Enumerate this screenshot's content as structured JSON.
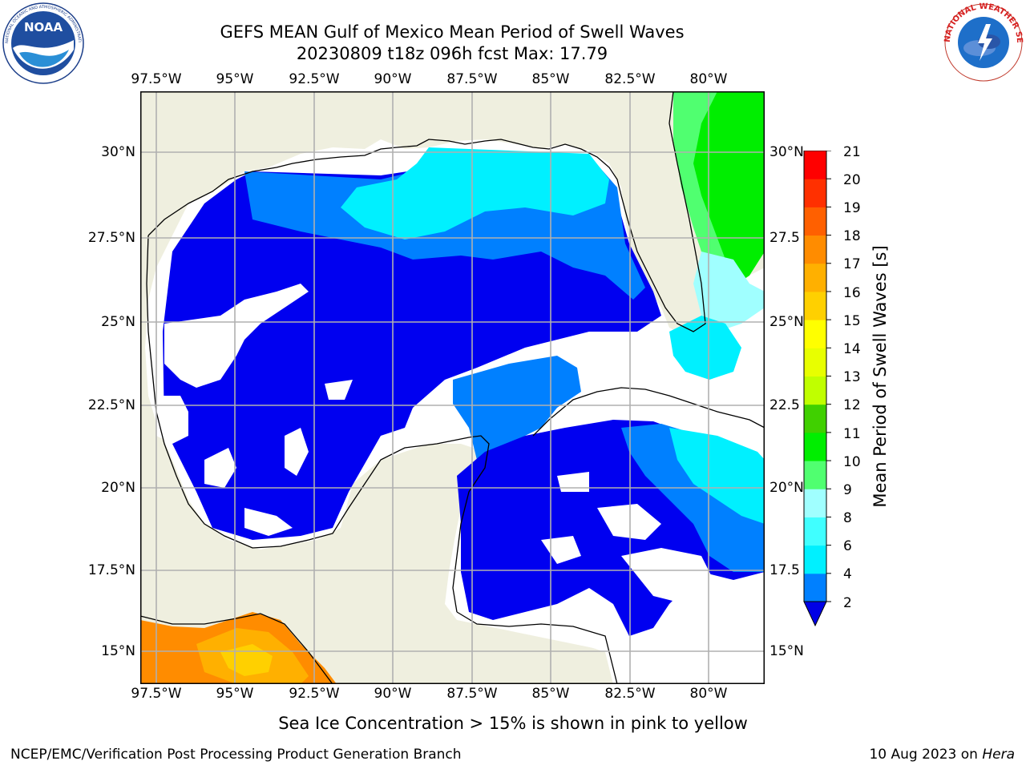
{
  "header": {
    "title_line1": "GEFS MEAN Gulf of Mexico Mean Period of Swell Waves",
    "title_line2": "20230809 t18z 096h fcst   Max: 17.79"
  },
  "logos": {
    "left_text": "NOAA",
    "left_ring_text": "NATIONAL OCEANIC AND ATMOSPHERIC ADMINISTRATION · U.S. DEPARTMENT OF COMMERCE",
    "right_ring_text": "NATIONAL WEATHER SERVICE"
  },
  "map": {
    "lon_labels": [
      "97.5°W",
      "95°W",
      "92.5°W",
      "90°W",
      "87.5°W",
      "85°W",
      "82.5°W",
      "80°W"
    ],
    "lat_labels_left": [
      "30°N",
      "27.5°N",
      "25°N",
      "22.5°N",
      "20°N",
      "17.5°N",
      "15°N"
    ],
    "lat_labels_right": [
      "30°N",
      "27.5",
      "25°N",
      "22.5",
      "20°N",
      "17.5",
      "15°N"
    ],
    "extent": {
      "lon_min": -98.0,
      "lon_max": -78.3,
      "lat_min": 14.0,
      "lat_max": 31.8
    },
    "colors": {
      "land": "#efefdf",
      "border": "#000000",
      "grid": "#b0b0b0",
      "no_data": "#ffffff"
    }
  },
  "colorbar": {
    "title": "Mean Period of Swell Waves [s]",
    "ticks": [
      "2",
      "4",
      "6",
      "8",
      "9",
      "10",
      "11",
      "12",
      "13",
      "14",
      "15",
      "16",
      "17",
      "18",
      "19",
      "20",
      "21"
    ],
    "colors": [
      "#0000f0",
      "#0080ff",
      "#00f0ff",
      "#40ffff",
      "#a0ffff",
      "#50ff70",
      "#00ee00",
      "#40d000",
      "#c0ff00",
      "#e8ff00",
      "#ffff00",
      "#ffd000",
      "#ffb000",
      "#ff8c00",
      "#ff6000",
      "#ff3000",
      "#ff0000"
    ],
    "extend_color": "#0000e6"
  },
  "footer": {
    "note": "Sea Ice Concentration > 15% is shown in pink to yellow",
    "left": "NCEP/EMC/Verification Post Processing Product Generation Branch",
    "right_prefix": "10 Aug 2023 on ",
    "right_host": "Hera"
  }
}
